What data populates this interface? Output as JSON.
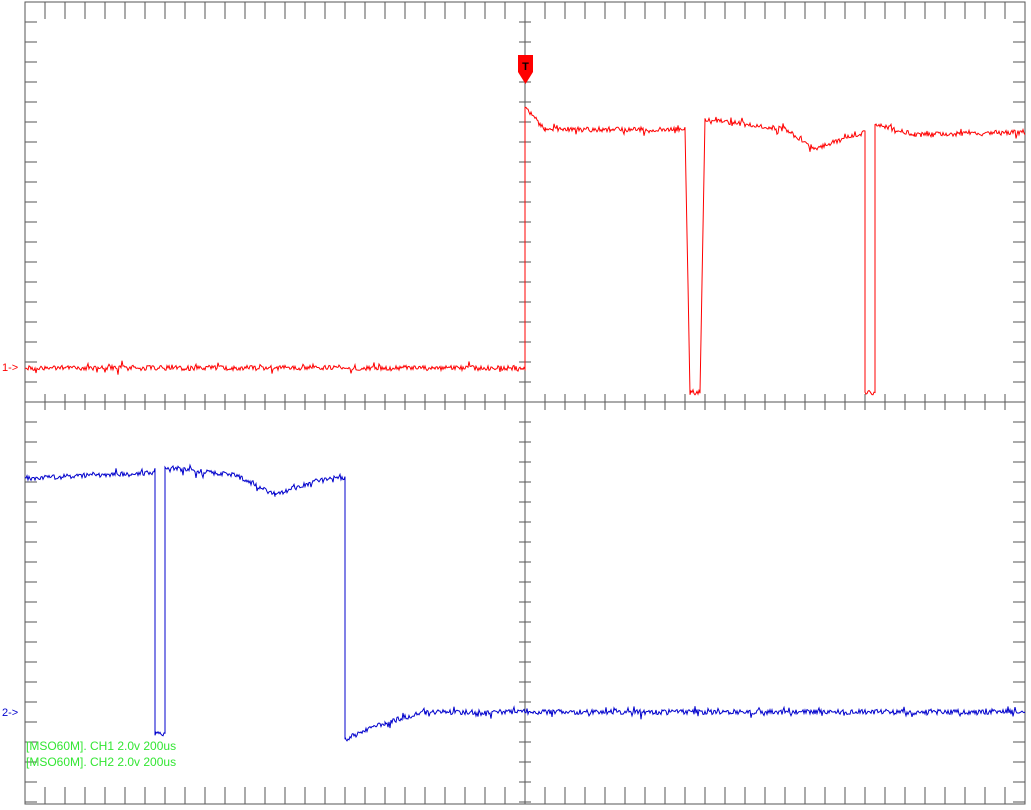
{
  "chart_data": {
    "type": "line",
    "title": "",
    "xlabel": "",
    "ylabel": "",
    "grid": false,
    "graticule": {
      "divisions_x": 2,
      "divisions_y": 2,
      "minor_ticks_per_div": 25
    },
    "x": {
      "unit": "us",
      "per_div": 200,
      "trigger_at_div": 1.0
    },
    "channels": [
      {
        "name": "CH1",
        "marker": "1->",
        "color": "#ff0000",
        "volts_per_div": 2.0,
        "description_points": {
          "baseline_fraction_of_panel": 0.0,
          "segments": [
            {
              "t": 0.0,
              "level": 0.0
            },
            {
              "t": 0.5,
              "level": 0.0
            },
            {
              "t": 0.5,
              "level": 0.96
            },
            {
              "t": 0.52,
              "level": 0.88
            },
            {
              "t": 0.66,
              "level": 0.88
            },
            {
              "t": 0.665,
              "level": -0.09
            },
            {
              "t": 0.675,
              "level": -0.09
            },
            {
              "t": 0.68,
              "level": 0.92
            },
            {
              "t": 0.76,
              "level": 0.88
            },
            {
              "t": 0.79,
              "level": 0.81
            },
            {
              "t": 0.84,
              "level": 0.87
            },
            {
              "t": 0.84,
              "level": -0.09
            },
            {
              "t": 0.85,
              "level": -0.09
            },
            {
              "t": 0.85,
              "level": 0.9
            },
            {
              "t": 0.89,
              "level": 0.86
            },
            {
              "t": 1.0,
              "level": 0.87
            }
          ]
        }
      },
      {
        "name": "CH2",
        "marker": "2->",
        "color": "#0000cc",
        "volts_per_div": 2.0,
        "description_points": {
          "segments": [
            {
              "t": 0.0,
              "level": 0.86
            },
            {
              "t": 0.13,
              "level": 0.88
            },
            {
              "t": 0.13,
              "level": -0.08
            },
            {
              "t": 0.14,
              "level": -0.08
            },
            {
              "t": 0.14,
              "level": 0.9
            },
            {
              "t": 0.21,
              "level": 0.87
            },
            {
              "t": 0.25,
              "level": 0.8
            },
            {
              "t": 0.3,
              "level": 0.86
            },
            {
              "t": 0.32,
              "level": 0.86
            },
            {
              "t": 0.32,
              "level": -0.1
            },
            {
              "t": 0.36,
              "level": -0.04
            },
            {
              "t": 0.4,
              "level": 0.0
            },
            {
              "t": 1.0,
              "level": 0.0
            }
          ]
        }
      }
    ],
    "trigger": {
      "label": "T",
      "color": "#ff0000"
    },
    "status": [
      "[MSO60M]. CH1 2.0v 200us",
      "[MSO60M]. CH2 2.0v 200us"
    ]
  },
  "colors": {
    "graticule": "#555555",
    "ch1": "#ff0000",
    "ch2": "#0000cc",
    "status_text": "#33e633",
    "background": "#ffffff"
  }
}
